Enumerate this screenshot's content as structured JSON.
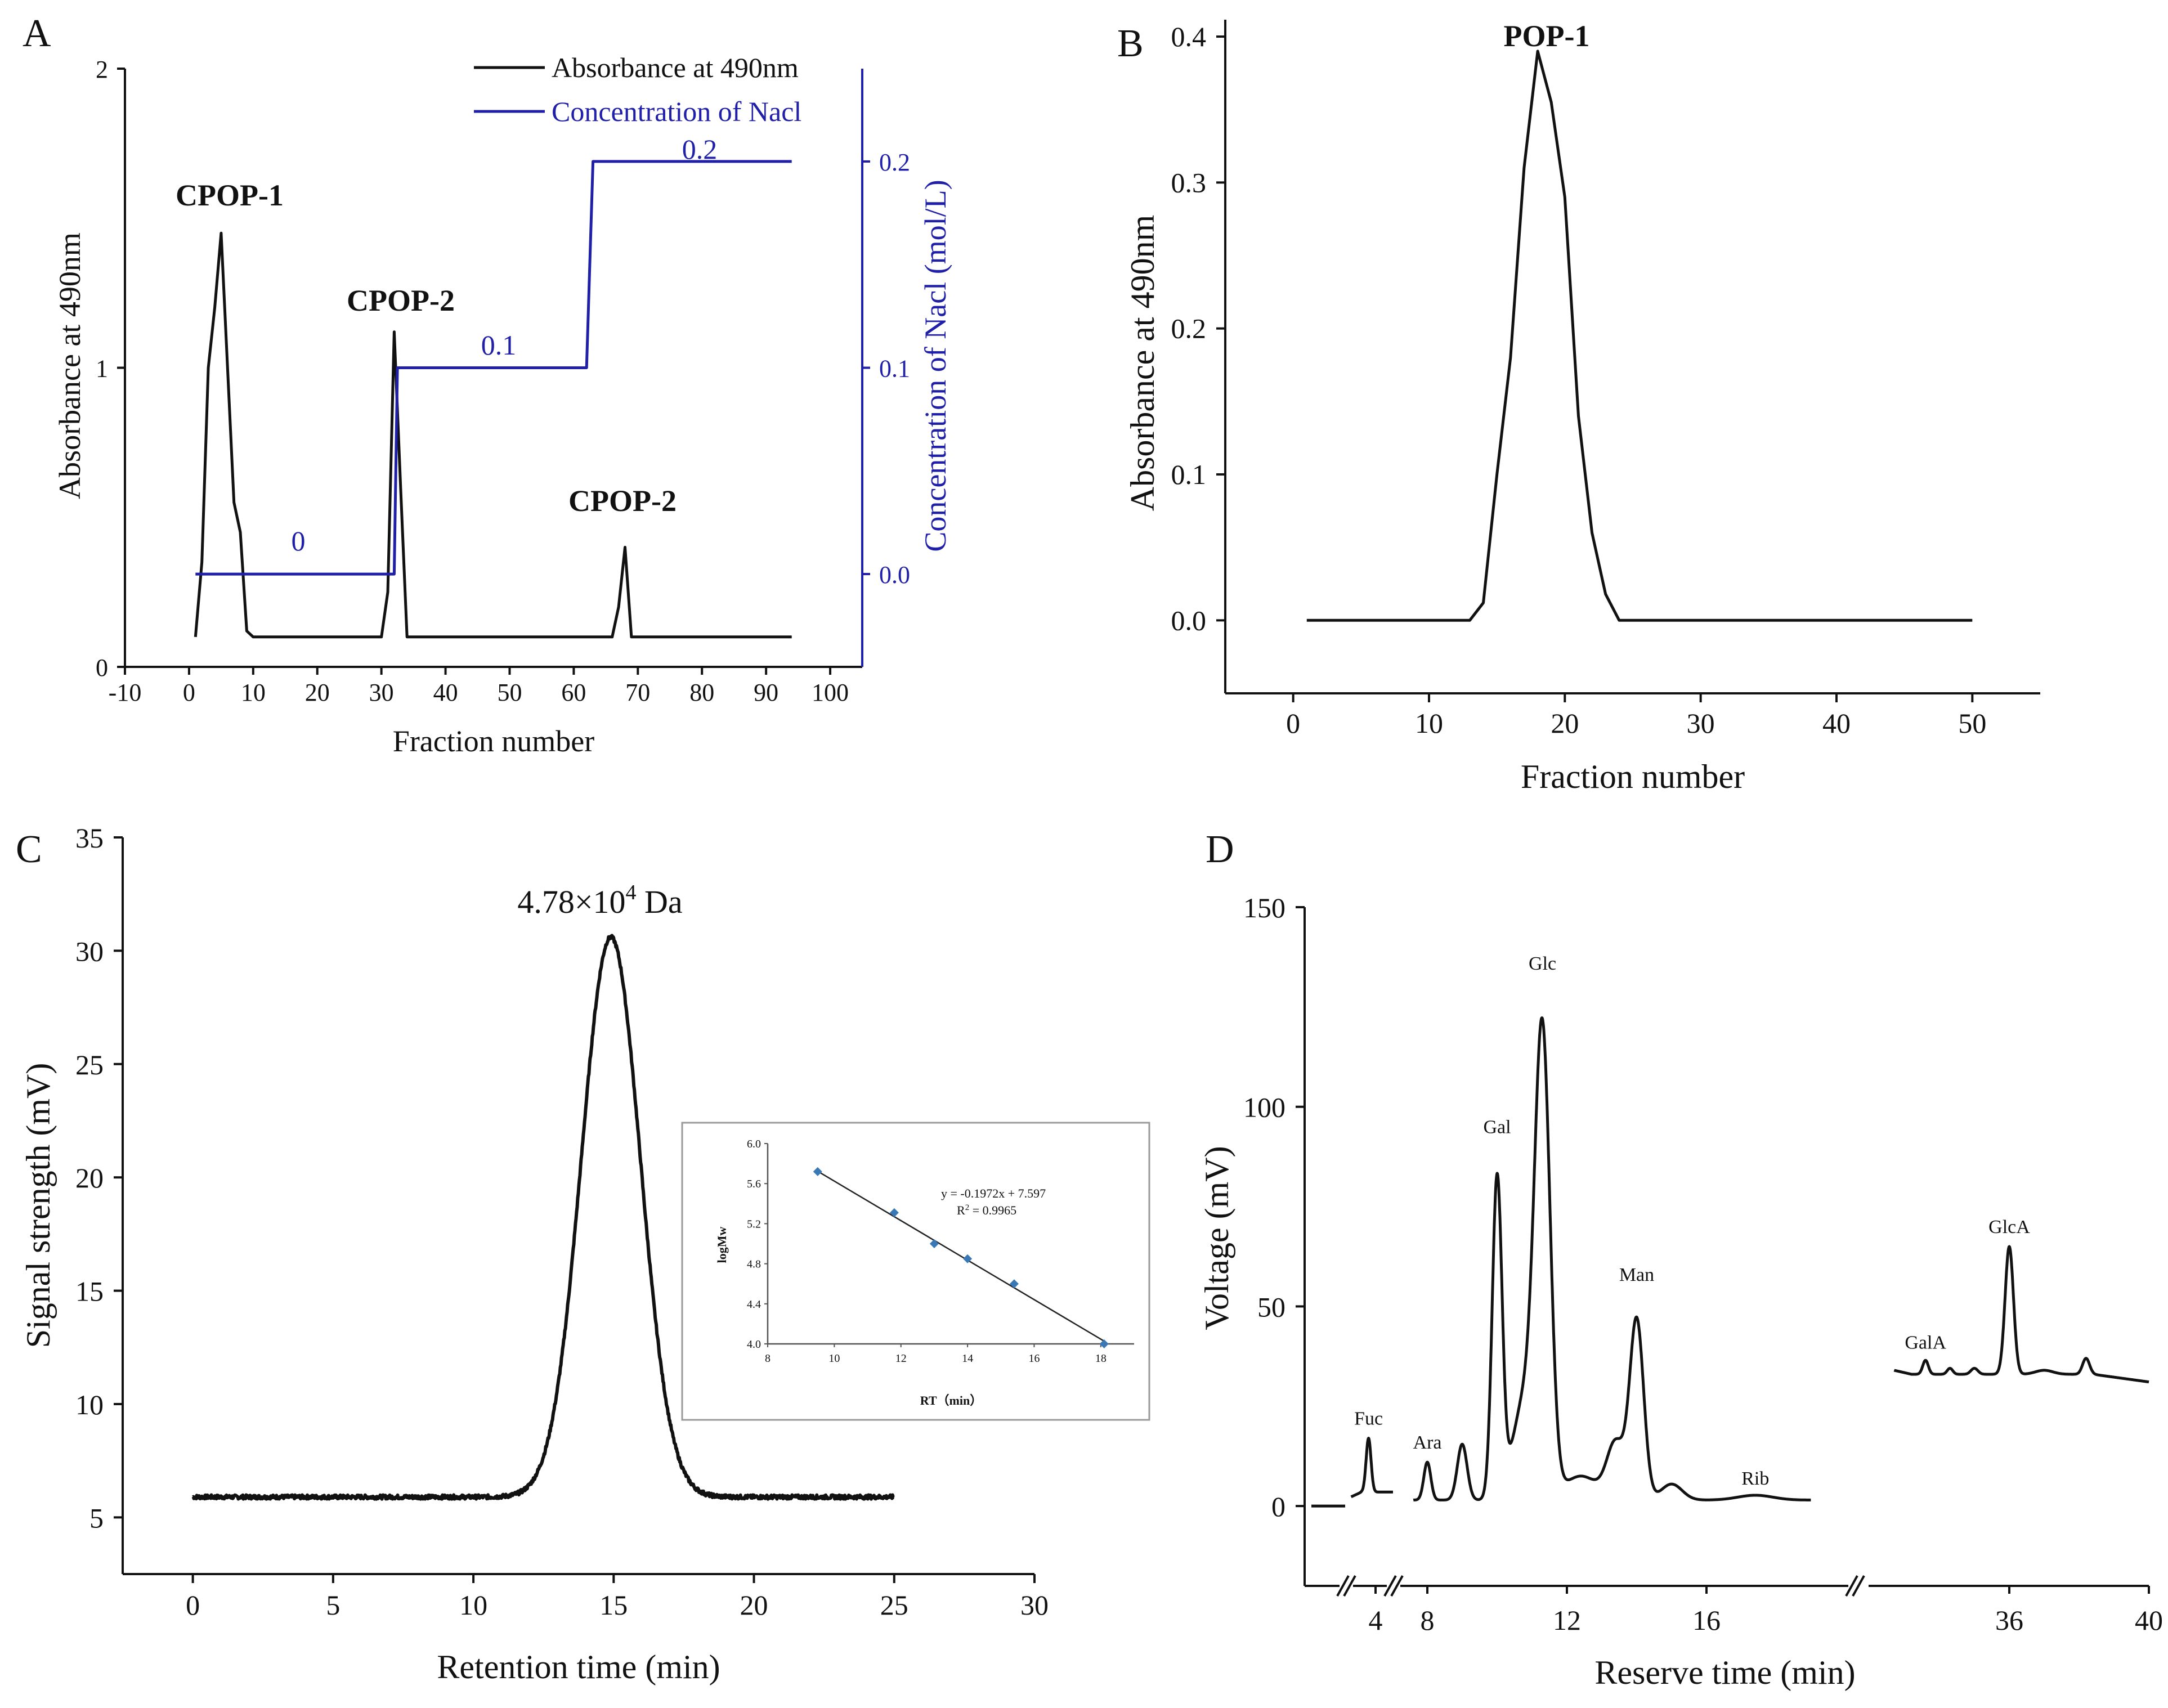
{
  "figure": {
    "panels": [
      "A",
      "B",
      "C",
      "D"
    ]
  },
  "colors": {
    "absorbance": "#111111",
    "nacl": "#1f1fa8",
    "inset_points": "#3a78b5"
  },
  "chart_data": [
    {
      "panel": "A",
      "type": "line",
      "xlabel": "Fraction number",
      "ylabel": "Absorbance at 490nm",
      "y2label": "Concentration of Nacl (mol/L)",
      "xlim": [
        -10,
        105
      ],
      "ylim": [
        0,
        2
      ],
      "y2lim": [
        -0.045,
        0.245
      ],
      "x_ticks": [
        "-10",
        "0",
        "10",
        "20",
        "30",
        "40",
        "50",
        "60",
        "70",
        "80",
        "90",
        "100"
      ],
      "y_ticks": [
        "0",
        "1",
        "2"
      ],
      "y2_ticks": [
        "0.0",
        "0.1",
        "0.2"
      ],
      "legend": [
        "Absorbance at 490nm",
        "Concentration of Nacl"
      ],
      "legend_position": "top-right",
      "annotations": {
        "peak1": "CPOP-1",
        "peak2": "CPOP-2",
        "peak3": "CPOP-2",
        "step0": "0",
        "step1": "0.1",
        "step2": "0.2"
      },
      "series": [
        {
          "name": "Absorbance at 490nm",
          "x": [
            1,
            2,
            3,
            4,
            5,
            6,
            7,
            8,
            9,
            10,
            30,
            31,
            32,
            33,
            34,
            66,
            67,
            68,
            69,
            94
          ],
          "y": [
            0.1,
            0.35,
            1.0,
            1.2,
            1.45,
            1.0,
            0.55,
            0.45,
            0.12,
            0.1,
            0.1,
            0.25,
            1.12,
            0.6,
            0.1,
            0.1,
            0.2,
            0.4,
            0.1,
            0.1
          ]
        },
        {
          "name": "Concentration of Nacl",
          "x": [
            1,
            32,
            32.5,
            62,
            63,
            94
          ],
          "y": [
            0.0,
            0.0,
            0.1,
            0.1,
            0.2,
            0.2
          ]
        }
      ]
    },
    {
      "panel": "B",
      "type": "line",
      "xlabel": "Fraction number",
      "ylabel": "Absorbance at 490nm",
      "xlim": [
        -5,
        55
      ],
      "ylim": [
        -0.05,
        0.4
      ],
      "x_ticks": [
        "0",
        "10",
        "20",
        "30",
        "40",
        "50"
      ],
      "y_ticks": [
        "0.0",
        "0.1",
        "0.2",
        "0.3",
        "0.4"
      ],
      "annotations": {
        "peak": "POP-1"
      },
      "series": [
        {
          "name": "",
          "x": [
            1,
            13,
            14,
            15,
            16,
            17,
            18,
            19,
            20,
            21,
            22,
            23,
            24,
            50
          ],
          "y": [
            0.0,
            0.0,
            0.012,
            0.1,
            0.18,
            0.31,
            0.39,
            0.355,
            0.29,
            0.14,
            0.06,
            0.018,
            0.0,
            0.0
          ]
        }
      ]
    },
    {
      "panel": "C",
      "type": "line",
      "xlabel": "Retention time (min)",
      "ylabel": "Signal strength (mV)",
      "xlim": [
        -2.5,
        30
      ],
      "ylim": [
        2.5,
        35
      ],
      "x_ticks": [
        "0",
        "5",
        "10",
        "15",
        "20",
        "25",
        "30"
      ],
      "y_ticks": [
        "5",
        "10",
        "15",
        "20",
        "25",
        "30",
        "35"
      ],
      "annotations": {
        "peak_base": "4.78×10",
        "peak_exp": "4",
        "peak_unit": " Da"
      },
      "series": [
        {
          "name": "",
          "peak_center": 14.9,
          "peak_sigma": 1.05,
          "baseline": 5.9,
          "peak_height": 30.6,
          "x_range": [
            0,
            25
          ]
        }
      ],
      "inset": {
        "type": "scatter",
        "xlabel": "RT（min）",
        "ylabel": "logMw",
        "xlim": [
          8,
          19
        ],
        "ylim": [
          4.0,
          6.0
        ],
        "x_ticks": [
          "8",
          "10",
          "12",
          "14",
          "16",
          "18"
        ],
        "y_ticks": [
          "4.0",
          "4.4",
          "4.8",
          "5.2",
          "5.6",
          "6.0"
        ],
        "equation": "y = -0.1972x + 7.597",
        "r2_base": "R",
        "r2_exp": "2",
        "r2_value": " = 0.9965",
        "x": [
          9.5,
          11.8,
          13.0,
          14.0,
          15.4,
          18.1
        ],
        "y": [
          5.72,
          5.31,
          5.0,
          4.85,
          4.6,
          4.0
        ],
        "fit": {
          "slope": -0.1972,
          "intercept": 7.597
        }
      }
    },
    {
      "panel": "D",
      "type": "line",
      "xlabel": "Reserve time (min)",
      "ylabel": "Voltage (mV)",
      "ylim": [
        -20,
        150
      ],
      "x_ticks": [
        "4",
        "8",
        "12",
        "16",
        "36",
        "40"
      ],
      "y_ticks": [
        "0",
        "50",
        "100",
        "150"
      ],
      "axis_breaks": true,
      "peaks": [
        {
          "label": "Fuc",
          "time": 3.8,
          "height": 17
        },
        {
          "label": "Ara",
          "time": 8.0,
          "height": 11
        },
        {
          "label": "Gal",
          "time": 10.0,
          "height": 90
        },
        {
          "label": "Glc",
          "time": 11.3,
          "height": 131
        },
        {
          "label": "Man",
          "time": 14.0,
          "height": 53
        },
        {
          "label": "Rib",
          "time": 17.4,
          "height": 2
        },
        {
          "label": "GalA",
          "time": 33.6,
          "height": 36
        },
        {
          "label": "GlcA",
          "time": 36.0,
          "height": 65
        }
      ]
    }
  ]
}
